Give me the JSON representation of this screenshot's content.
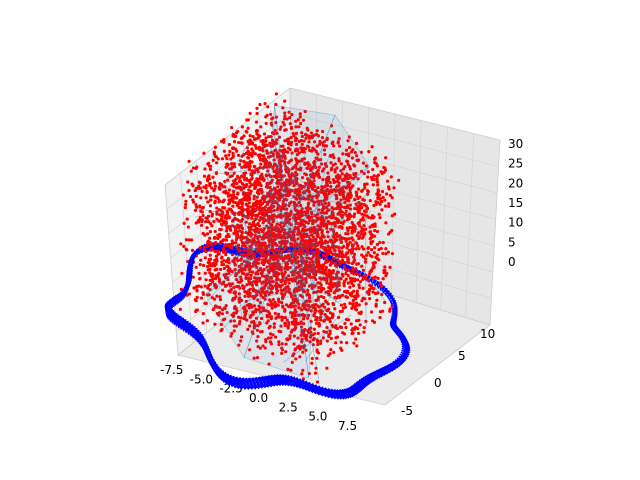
{
  "chart_data": {
    "type": "scatter",
    "projection": "3d",
    "title": "",
    "xlabel": "",
    "ylabel": "",
    "zlabel": "",
    "grid": true,
    "xlim": [
      -9,
      9
    ],
    "ylim": [
      -8,
      14
    ],
    "zlim": [
      0,
      30
    ],
    "x_ticks": [
      "-7.5",
      "-5.0",
      "-2.5",
      "0.0",
      "2.5",
      "5.0",
      "7.5"
    ],
    "y_ticks": [
      "-5",
      "0",
      "5",
      "10"
    ],
    "z_ticks": [
      "0",
      "5",
      "10",
      "15",
      "20",
      "25",
      "30"
    ],
    "series": [
      {
        "kind": "quiver-ring",
        "color": "#0000ff",
        "marker": "arrow",
        "shape": "wavy ring around base",
        "approx_radius": 9,
        "approx_z": 0
      },
      {
        "kind": "scatter-cloud",
        "color": "#ff0000",
        "marker": "dot",
        "shape": "box-like cloud",
        "approx_x_range": [
          -6,
          6
        ],
        "approx_y_range": [
          -4,
          10
        ],
        "approx_z_range": [
          0,
          25
        ]
      },
      {
        "kind": "triangulated-surface",
        "color": "#1f77b4",
        "opacity": 0.6,
        "shape": "convex hull of cloud"
      }
    ]
  }
}
